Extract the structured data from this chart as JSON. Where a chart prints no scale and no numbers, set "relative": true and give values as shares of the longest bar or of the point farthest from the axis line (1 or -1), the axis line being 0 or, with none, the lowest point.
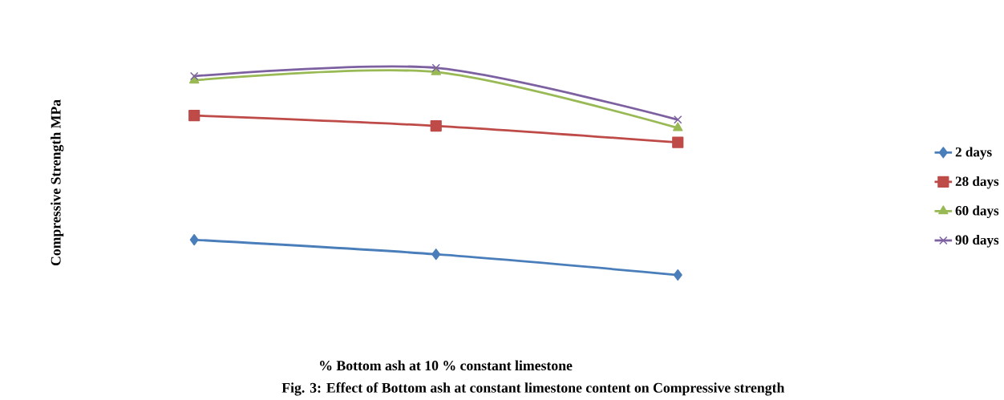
{
  "chart_data": {
    "type": "line",
    "relative": true,
    "ylabel": "Compressive Strength MPa",
    "annotations": [
      "%  Bottom ash at 10 % constant limestone",
      "Fig. 3: Effect of Bottom ash at constant limestone content on Compressive strength"
    ],
    "categories": [
      null,
      null,
      null
    ],
    "legend": "right",
    "series": [
      {
        "name": "2 days",
        "color": "#4a7ebb",
        "marker": "diamond",
        "values": [
          0.17,
          0.1,
          0
        ]
      },
      {
        "name": "28 days",
        "color": "#be4b48",
        "marker": "square",
        "values": [
          0.77,
          0.72,
          0.64
        ]
      },
      {
        "name": "60 days",
        "color": "#98b954",
        "marker": "triangle",
        "values": [
          0.94,
          0.98,
          0.71
        ]
      },
      {
        "name": "90 days",
        "color": "#7d60a0",
        "marker": "cross",
        "values": [
          0.96,
          1,
          0.75
        ]
      }
    ]
  }
}
